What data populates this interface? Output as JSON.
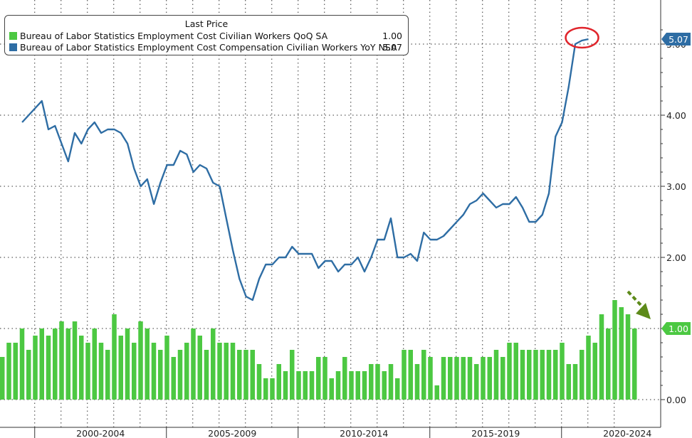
{
  "chart_data": {
    "type": "bar+line",
    "legend": {
      "title": "Last Price",
      "placement": "top-left",
      "entries": [
        {
          "label": "Bureau of Labor Statistics Employment Cost Civilian Workers QoQ SA",
          "value": "1.00",
          "color": "#4cc842"
        },
        {
          "label": "Bureau of Labor Statistics Employment Cost Compensation Civilian Workers YoY NSA",
          "value": "5.07",
          "color": "#2e6da4"
        }
      ]
    },
    "x_axis": {
      "type": "quarterly",
      "start": "1998Q4",
      "end": "2022Q3",
      "period_labels": [
        "2000-2004",
        "2005-2009",
        "2010-2014",
        "2015-2019",
        "2020-2024"
      ]
    },
    "y_axis": {
      "side": "right",
      "ylim": [
        -0.2,
        5.5
      ],
      "ticks": [
        "0.00",
        "1.00",
        "2.00",
        "3.00",
        "4.00",
        "5.00"
      ],
      "grid": "dotted"
    },
    "series": [
      {
        "name": "Bureau of Labor Statistics Employment Cost Civilian Workers QoQ SA",
        "type": "bar",
        "color": "#4cc842",
        "values": [
          0.6,
          0.8,
          0.8,
          1.0,
          0.7,
          0.9,
          1.0,
          0.9,
          1.0,
          1.1,
          1.0,
          1.1,
          0.9,
          0.8,
          1.0,
          0.8,
          0.7,
          1.2,
          0.9,
          1.0,
          0.8,
          1.1,
          1.0,
          0.8,
          0.7,
          0.9,
          0.6,
          0.7,
          0.8,
          1.0,
          0.9,
          0.7,
          1.0,
          0.8,
          0.8,
          0.8,
          0.7,
          0.7,
          0.7,
          0.5,
          0.3,
          0.3,
          0.5,
          0.4,
          0.7,
          0.4,
          0.4,
          0.4,
          0.6,
          0.6,
          0.3,
          0.4,
          0.6,
          0.4,
          0.4,
          0.4,
          0.5,
          0.5,
          0.4,
          0.5,
          0.3,
          0.7,
          0.7,
          0.5,
          0.7,
          0.6,
          0.2,
          0.6,
          0.6,
          0.6,
          0.6,
          0.6,
          0.5,
          0.6,
          0.6,
          0.7,
          0.6,
          0.8,
          0.8,
          0.7,
          0.7,
          0.7,
          0.7,
          0.7,
          0.7,
          0.8,
          0.5,
          0.5,
          0.7,
          0.9,
          0.8,
          1.2,
          1.0,
          1.4,
          1.3,
          1.2,
          1.0
        ]
      },
      {
        "name": "Bureau of Labor Statistics Employment Cost Compensation Civilian Workers YoY NSA",
        "type": "line",
        "color": "#2e6da4",
        "start": "1999Q3",
        "values": [
          3.9,
          4.0,
          4.1,
          4.2,
          3.8,
          3.85,
          3.6,
          3.35,
          3.75,
          3.6,
          3.8,
          3.9,
          3.75,
          3.8,
          3.8,
          3.75,
          3.6,
          3.25,
          3.0,
          3.1,
          2.75,
          3.05,
          3.3,
          3.3,
          3.5,
          3.45,
          3.2,
          3.3,
          3.25,
          3.05,
          3.0,
          2.55,
          2.1,
          1.7,
          1.45,
          1.4,
          1.7,
          1.9,
          1.9,
          2.0,
          2.0,
          2.15,
          2.05,
          2.05,
          2.05,
          1.85,
          1.95,
          1.95,
          1.8,
          1.9,
          1.9,
          2.0,
          1.8,
          2.0,
          2.25,
          2.25,
          2.55,
          2.0,
          2.0,
          2.05,
          1.95,
          2.35,
          2.25,
          2.25,
          2.3,
          2.4,
          2.5,
          2.6,
          2.75,
          2.8,
          2.9,
          2.8,
          2.7,
          2.75,
          2.75,
          2.85,
          2.7,
          2.5,
          2.5,
          2.6,
          2.9,
          3.7,
          3.9,
          4.4,
          5.0,
          5.05,
          5.07
        ]
      }
    ],
    "annotations": [
      {
        "type": "circle",
        "target": "latest YoY value",
        "color": "#e0242b"
      },
      {
        "type": "arrow",
        "direction": "down-right",
        "target": "latest QoQ bars",
        "color": "#5d8a1a"
      }
    ]
  }
}
